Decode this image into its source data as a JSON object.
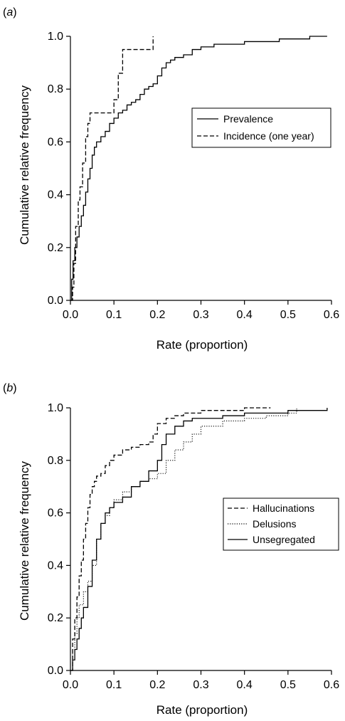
{
  "chart_data": [
    {
      "type": "line",
      "panel_label": "(a)",
      "panel_letter": "a",
      "xlabel": "Rate (proportion)",
      "ylabel": "Cumulative relative frequency",
      "xlim": [
        0,
        0.6
      ],
      "ylim": [
        0,
        1.0
      ],
      "xticks": [
        "0.0",
        "0.1",
        "0.2",
        "0.3",
        "0.4",
        "0.5",
        "0.6"
      ],
      "yticks": [
        "0.0",
        "0.2",
        "0.4",
        "0.6",
        "0.8",
        "1.0"
      ],
      "grid": false,
      "legend_position": "right",
      "series": [
        {
          "name": "Prevalence",
          "style": "solid",
          "x": [
            0.0,
            0.003,
            0.006,
            0.01,
            0.015,
            0.02,
            0.025,
            0.03,
            0.035,
            0.04,
            0.045,
            0.05,
            0.055,
            0.06,
            0.07,
            0.08,
            0.09,
            0.1,
            0.11,
            0.12,
            0.13,
            0.14,
            0.15,
            0.16,
            0.17,
            0.18,
            0.19,
            0.2,
            0.21,
            0.22,
            0.23,
            0.24,
            0.26,
            0.28,
            0.3,
            0.33,
            0.37,
            0.4,
            0.44,
            0.48,
            0.5,
            0.52,
            0.55,
            0.59
          ],
          "y": [
            0.0,
            0.08,
            0.15,
            0.2,
            0.24,
            0.28,
            0.32,
            0.36,
            0.41,
            0.46,
            0.5,
            0.55,
            0.58,
            0.6,
            0.62,
            0.64,
            0.67,
            0.69,
            0.71,
            0.72,
            0.74,
            0.75,
            0.76,
            0.78,
            0.8,
            0.81,
            0.82,
            0.85,
            0.88,
            0.9,
            0.91,
            0.92,
            0.93,
            0.95,
            0.96,
            0.97,
            0.97,
            0.98,
            0.98,
            0.99,
            0.99,
            0.99,
            1.0,
            1.0
          ]
        },
        {
          "name": "Incidence (one year)",
          "style": "dashed",
          "x": [
            0.0,
            0.005,
            0.008,
            0.012,
            0.018,
            0.022,
            0.028,
            0.035,
            0.04,
            0.045,
            0.055,
            0.065,
            0.075,
            0.085,
            0.1,
            0.11,
            0.12,
            0.13,
            0.15,
            0.17,
            0.185,
            0.19
          ],
          "y": [
            0.0,
            0.05,
            0.14,
            0.28,
            0.38,
            0.43,
            0.52,
            0.62,
            0.67,
            0.71,
            0.71,
            0.71,
            0.71,
            0.71,
            0.76,
            0.86,
            0.95,
            0.95,
            0.95,
            0.95,
            0.95,
            1.0
          ]
        }
      ]
    },
    {
      "type": "line",
      "panel_label": "(b)",
      "panel_letter": "b",
      "xlabel": "Rate (proportion)",
      "ylabel": "Cumulative relative frequency",
      "xlim": [
        0,
        0.6
      ],
      "ylim": [
        0,
        1.0
      ],
      "xticks": [
        "0.0",
        "0.1",
        "0.2",
        "0.3",
        "0.4",
        "0.5",
        "0.6"
      ],
      "yticks": [
        "0.0",
        "0.2",
        "0.4",
        "0.6",
        "0.8",
        "1.0"
      ],
      "grid": false,
      "legend_position": "right",
      "series": [
        {
          "name": "Hallucinations",
          "style": "dashed",
          "x": [
            0.0,
            0.005,
            0.01,
            0.015,
            0.02,
            0.025,
            0.03,
            0.035,
            0.04,
            0.045,
            0.05,
            0.055,
            0.06,
            0.07,
            0.08,
            0.09,
            0.1,
            0.12,
            0.14,
            0.16,
            0.18,
            0.19,
            0.2,
            0.22,
            0.24,
            0.26,
            0.28,
            0.3,
            0.35,
            0.4,
            0.46
          ],
          "y": [
            0.0,
            0.12,
            0.2,
            0.28,
            0.36,
            0.42,
            0.5,
            0.56,
            0.62,
            0.67,
            0.7,
            0.72,
            0.74,
            0.75,
            0.78,
            0.8,
            0.82,
            0.84,
            0.85,
            0.86,
            0.87,
            0.9,
            0.94,
            0.96,
            0.97,
            0.98,
            0.98,
            0.99,
            0.99,
            1.0,
            1.0
          ]
        },
        {
          "name": "Delusions",
          "style": "dotted",
          "x": [
            0.0,
            0.005,
            0.01,
            0.015,
            0.02,
            0.03,
            0.04,
            0.05,
            0.06,
            0.07,
            0.08,
            0.09,
            0.1,
            0.12,
            0.14,
            0.16,
            0.18,
            0.2,
            0.22,
            0.24,
            0.26,
            0.28,
            0.3,
            0.35,
            0.4,
            0.45,
            0.5,
            0.52
          ],
          "y": [
            0.0,
            0.08,
            0.14,
            0.2,
            0.25,
            0.3,
            0.34,
            0.4,
            0.5,
            0.56,
            0.59,
            0.62,
            0.65,
            0.68,
            0.7,
            0.72,
            0.73,
            0.75,
            0.8,
            0.84,
            0.87,
            0.9,
            0.93,
            0.95,
            0.96,
            0.97,
            0.98,
            1.0
          ]
        },
        {
          "name": "Unsegregated",
          "style": "solid",
          "x": [
            0.0,
            0.005,
            0.01,
            0.015,
            0.02,
            0.025,
            0.03,
            0.04,
            0.05,
            0.06,
            0.07,
            0.08,
            0.09,
            0.1,
            0.12,
            0.14,
            0.16,
            0.18,
            0.2,
            0.21,
            0.22,
            0.24,
            0.26,
            0.28,
            0.3,
            0.35,
            0.4,
            0.5,
            0.59
          ],
          "y": [
            0.0,
            0.04,
            0.08,
            0.12,
            0.16,
            0.2,
            0.24,
            0.32,
            0.42,
            0.5,
            0.56,
            0.6,
            0.62,
            0.64,
            0.66,
            0.7,
            0.72,
            0.76,
            0.8,
            0.86,
            0.9,
            0.93,
            0.95,
            0.96,
            0.96,
            0.97,
            0.98,
            0.99,
            1.0
          ]
        }
      ]
    }
  ]
}
